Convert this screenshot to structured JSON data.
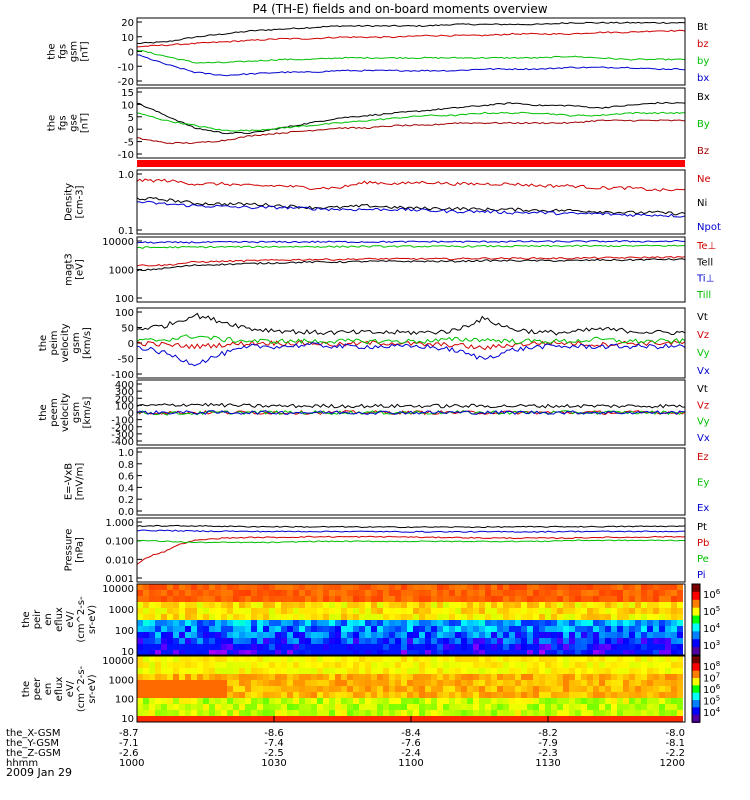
{
  "title": "P4 (TH-E) fields and on-board moments overview",
  "chart_data": [
    {
      "type": "line",
      "ylabel": [
        "the",
        "fgs",
        "gsm",
        "[nT]"
      ],
      "yticks": [
        "20",
        "10",
        "0",
        "-10",
        "-20"
      ],
      "ylim": [
        -20,
        22
      ],
      "series": [
        {
          "name": "Bt",
          "color": "#000000",
          "values": [
            6,
            7,
            10,
            12,
            14,
            15,
            16,
            17,
            17,
            17,
            17,
            18,
            18,
            18,
            18,
            19,
            19,
            19,
            19,
            19
          ]
        },
        {
          "name": "bz",
          "color": "#d00000",
          "values": [
            4,
            5,
            6,
            7,
            8,
            9,
            9,
            10,
            10,
            10,
            11,
            11,
            11,
            12,
            12,
            12,
            13,
            13,
            14,
            14
          ]
        },
        {
          "name": "by",
          "color": "#00c000",
          "values": [
            2,
            -2,
            -6,
            -6,
            -5,
            -4,
            -4,
            -3,
            -3,
            -3,
            -3,
            -3,
            -3,
            -3,
            -3,
            -2,
            -3,
            -4,
            -4,
            -4
          ]
        },
        {
          "name": "bx",
          "color": "#0000d0",
          "values": [
            -1,
            -7,
            -12,
            -14,
            -13,
            -12,
            -12,
            -11,
            -11,
            -11,
            -11,
            -11,
            -10,
            -10,
            -10,
            -9,
            -9,
            -9,
            -10,
            -10
          ]
        }
      ]
    },
    {
      "type": "line",
      "ylabel": [
        "the",
        "fgs",
        "gse",
        "[nT]"
      ],
      "yticks": [
        "15",
        "10",
        "5",
        "0",
        "-5",
        "-10"
      ],
      "ylim": [
        -12,
        16
      ],
      "series": [
        {
          "name": "Bx",
          "color": "#000000",
          "values": [
            10,
            5,
            0,
            -2,
            -2,
            0,
            2,
            4,
            5,
            6,
            7,
            8,
            9,
            10,
            9,
            9,
            8,
            9,
            10,
            10
          ]
        },
        {
          "name": "By",
          "color": "#00c000",
          "values": [
            6,
            3,
            1,
            -1,
            -1,
            0,
            1,
            2,
            3,
            4,
            5,
            5,
            6,
            6,
            6,
            5,
            5,
            6,
            6,
            6
          ]
        },
        {
          "name": "Bz",
          "color": "#a00000",
          "values": [
            -4,
            -6,
            -6,
            -5,
            -3,
            -2,
            -1,
            0,
            0,
            1,
            1,
            2,
            2,
            2,
            2,
            2,
            3,
            3,
            3,
            3
          ]
        }
      ]
    },
    {
      "type": "line",
      "log": true,
      "ylabel": [
        "Density",
        "[cm-3]"
      ],
      "yticks": [
        "1.0",
        "0.1"
      ],
      "ylim": [
        0.1,
        1.2
      ],
      "series": [
        {
          "name": "Ne",
          "color": "#d00000",
          "values": [
            0.8,
            0.8,
            0.7,
            0.7,
            0.65,
            0.65,
            0.6,
            0.6,
            0.75,
            0.7,
            0.75,
            0.7,
            0.7,
            0.7,
            0.65,
            0.65,
            0.6,
            0.6,
            0.55,
            0.55
          ]
        },
        {
          "name": "Ni",
          "color": "#000000",
          "values": [
            0.4,
            0.38,
            0.33,
            0.32,
            0.32,
            0.3,
            0.28,
            0.28,
            0.3,
            0.28,
            0.27,
            0.27,
            0.26,
            0.26,
            0.25,
            0.25,
            0.24,
            0.23,
            0.23,
            0.22
          ]
        },
        {
          "name": "Npot",
          "color": "#0000d0",
          "values": [
            0.35,
            0.32,
            0.3,
            0.29,
            0.28,
            0.28,
            0.27,
            0.26,
            0.26,
            0.26,
            0.25,
            0.24,
            0.24,
            0.23,
            0.23,
            0.22,
            0.22,
            0.21,
            0.21,
            0.2
          ]
        }
      ]
    },
    {
      "type": "line",
      "log": true,
      "ylabel": [
        "magt3",
        "[eV]"
      ],
      "yticks": [
        "10000",
        "1000",
        "100"
      ],
      "ylim": [
        100,
        12000
      ],
      "series": [
        {
          "name": "Te⊥",
          "color": "#d00000",
          "values": [
            1500,
            1500,
            1900,
            2000,
            2100,
            2200,
            2300,
            2300,
            2400,
            2400,
            2400,
            2400,
            2500,
            2500,
            2500,
            2500,
            2600,
            2600,
            2700,
            2700
          ]
        },
        {
          "name": "Tell",
          "color": "#000000",
          "values": [
            1000,
            1200,
            1500,
            1600,
            1700,
            1800,
            1900,
            1900,
            2000,
            2000,
            2000,
            2000,
            2100,
            2100,
            2100,
            2100,
            2200,
            2200,
            2300,
            2300
          ]
        },
        {
          "name": "Ti⊥",
          "color": "#0000d0",
          "values": [
            8000,
            8000,
            8100,
            8200,
            8300,
            8300,
            8400,
            8400,
            8400,
            8400,
            8500,
            8500,
            8500,
            8600,
            8600,
            8600,
            8700,
            8700,
            8700,
            8800
          ]
        },
        {
          "name": "Till",
          "color": "#00c000",
          "values": [
            5500,
            5600,
            5700,
            5800,
            5800,
            5900,
            5900,
            5900,
            6000,
            6000,
            6000,
            6000,
            6100,
            6100,
            6100,
            6200,
            6200,
            6200,
            6300,
            6300
          ]
        }
      ]
    },
    {
      "type": "line",
      "ylabel": [
        "the",
        "peim",
        "velocity",
        "gsm",
        "[km/s]"
      ],
      "yticks": [
        "100",
        "50",
        "0",
        "-50",
        "-100"
      ],
      "ylim": [
        -100,
        100
      ],
      "series": [
        {
          "name": "Vt",
          "color": "#000000",
          "values": [
            40,
            50,
            80,
            60,
            40,
            35,
            30,
            30,
            30,
            30,
            30,
            35,
            70,
            40,
            30,
            30,
            40,
            35,
            30,
            30
          ]
        },
        {
          "name": "Vz",
          "color": "#d00000",
          "values": [
            0,
            -5,
            -10,
            -5,
            0,
            0,
            0,
            -5,
            0,
            0,
            -5,
            -5,
            -15,
            -5,
            0,
            0,
            -5,
            0,
            0,
            0
          ]
        },
        {
          "name": "Vy",
          "color": "#00c000",
          "values": [
            5,
            10,
            20,
            10,
            5,
            5,
            5,
            5,
            5,
            5,
            5,
            10,
            10,
            5,
            5,
            5,
            10,
            5,
            5,
            5
          ]
        },
        {
          "name": "Vx",
          "color": "#0000d0",
          "values": [
            -10,
            -30,
            -60,
            -30,
            -10,
            -10,
            -5,
            -10,
            -10,
            -10,
            -10,
            -20,
            -45,
            -20,
            -10,
            -10,
            -10,
            -10,
            -10,
            -10
          ]
        }
      ]
    },
    {
      "type": "line",
      "ylabel": [
        "the",
        "peem",
        "velocity",
        "gsm",
        "[km/s]"
      ],
      "yticks": [
        "400",
        "300",
        "200",
        "100",
        "0",
        "-100",
        "-200",
        "-300",
        "-400"
      ],
      "ylim": [
        -400,
        400
      ],
      "series": [
        {
          "name": "Vt",
          "color": "#000000",
          "values": [
            80,
            90,
            100,
            90,
            80,
            80,
            80,
            80,
            80,
            80,
            80,
            80,
            80,
            80,
            80,
            80,
            80,
            80,
            80,
            80
          ]
        },
        {
          "name": "Vz",
          "color": "#d00000",
          "values": [
            0,
            0,
            0,
            0,
            0,
            0,
            0,
            0,
            0,
            0,
            0,
            0,
            0,
            0,
            0,
            0,
            0,
            0,
            0,
            0
          ]
        },
        {
          "name": "Vy",
          "color": "#00c000",
          "values": [
            0,
            -10,
            -10,
            0,
            0,
            0,
            0,
            0,
            0,
            0,
            0,
            0,
            0,
            0,
            0,
            0,
            0,
            0,
            0,
            0
          ]
        },
        {
          "name": "Vx",
          "color": "#0000d0",
          "values": [
            0,
            0,
            0,
            0,
            0,
            0,
            0,
            0,
            0,
            0,
            0,
            0,
            0,
            0,
            0,
            0,
            0,
            0,
            0,
            0
          ]
        }
      ]
    },
    {
      "type": "line",
      "ylabel": [
        "E=-VxB",
        "[mV/m]"
      ],
      "yticks": [
        "1.0",
        "0.8",
        "0.6",
        "0.4",
        "0.2",
        "0.0"
      ],
      "ylim": [
        0,
        1
      ],
      "series": [
        {
          "name": "Ez",
          "color": "#d00000",
          "values": []
        },
        {
          "name": "Ey",
          "color": "#00c000",
          "values": []
        },
        {
          "name": "Ex",
          "color": "#0000d0",
          "values": []
        }
      ]
    },
    {
      "type": "line",
      "log": true,
      "ylabel": [
        "Pressure",
        "[nPa]"
      ],
      "yticks": [
        "1.000",
        "0.100",
        "0.010",
        "0.001"
      ],
      "ylim": [
        0.001,
        1.2
      ],
      "series": [
        {
          "name": "Pt",
          "color": "#000000",
          "values": [
            0.5,
            0.5,
            0.5,
            0.48,
            0.46,
            0.46,
            0.45,
            0.45,
            0.44,
            0.44,
            0.44,
            0.44,
            0.44,
            0.45,
            0.45,
            0.46,
            0.46,
            0.47,
            0.48,
            0.48
          ]
        },
        {
          "name": "Pb",
          "color": "#d00000",
          "values": [
            0.007,
            0.03,
            0.1,
            0.13,
            0.14,
            0.14,
            0.15,
            0.15,
            0.15,
            0.15,
            0.14,
            0.14,
            0.13,
            0.13,
            0.13,
            0.13,
            0.14,
            0.14,
            0.15,
            0.15
          ]
        },
        {
          "name": "Pe",
          "color": "#00c000",
          "values": [
            0.1,
            0.09,
            0.08,
            0.08,
            0.08,
            0.08,
            0.09,
            0.09,
            0.09,
            0.09,
            0.09,
            0.09,
            0.09,
            0.09,
            0.09,
            0.1,
            0.1,
            0.1,
            0.1,
            0.1
          ]
        },
        {
          "name": "Pi",
          "color": "#0000d0",
          "values": [
            0.3,
            0.3,
            0.28,
            0.28,
            0.27,
            0.27,
            0.27,
            0.27,
            0.27,
            0.26,
            0.26,
            0.26,
            0.26,
            0.26,
            0.26,
            0.27,
            0.27,
            0.27,
            0.27,
            0.27
          ]
        }
      ]
    },
    {
      "type": "heatmap",
      "ylabel": [
        "the",
        "peir",
        "en",
        "eflux",
        "eV/",
        "(cm^2-s-",
        "sr-eV)"
      ],
      "yticks": [
        "10000",
        "1000",
        "100",
        "10"
      ],
      "colorbar_ticks": [
        "10^6",
        "10^5",
        "10^4",
        "10^3"
      ]
    },
    {
      "type": "heatmap",
      "ylabel": [
        "the",
        "peer",
        "en",
        "eflux",
        "eV/",
        "(cm^2-s-",
        "sr-eV)"
      ],
      "yticks": [
        "10000",
        "1000",
        "100",
        "10"
      ],
      "colorbar_ticks": [
        "10^8",
        "10^7",
        "10^6",
        "10^5",
        "10^4"
      ]
    }
  ],
  "xaxis": {
    "rows": [
      {
        "label": "the_X-GSM",
        "values": [
          "-8.7",
          "-8.6",
          "-8.4",
          "-8.2",
          "-8.0"
        ]
      },
      {
        "label": "the_Y-GSM",
        "values": [
          "-7.1",
          "-7.4",
          "-7.6",
          "-7.9",
          "-8.1"
        ]
      },
      {
        "label": "the_Z-GSM",
        "values": [
          "-2.6",
          "-2.5",
          "-2.4",
          "-2.3",
          "-2.2"
        ]
      },
      {
        "label": "hhmm",
        "values": [
          "1000",
          "1030",
          "1100",
          "1130",
          "1200"
        ]
      }
    ],
    "date": "2009 Jan 29"
  }
}
